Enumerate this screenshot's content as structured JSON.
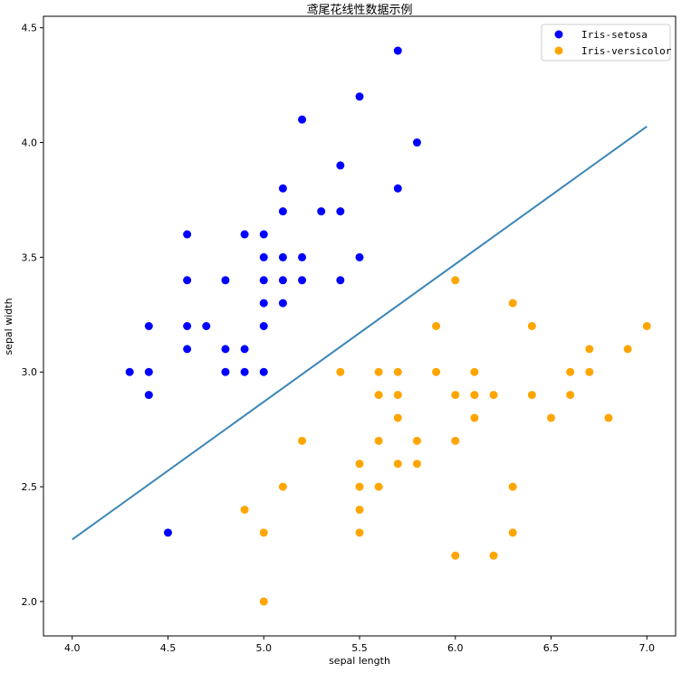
{
  "chart_data": {
    "type": "scatter",
    "title": "鸢尾花线性数据示例",
    "xlabel": "sepal length",
    "ylabel": "sepal width",
    "xlim": [
      3.85,
      7.15
    ],
    "ylim": [
      1.85,
      4.55
    ],
    "xticks": [
      "4.0",
      "4.5",
      "5.0",
      "5.5",
      "6.0",
      "6.5",
      "7.0"
    ],
    "yticks": [
      "2.0",
      "2.5",
      "3.0",
      "3.5",
      "4.0",
      "4.5"
    ],
    "legend_position": "top-right",
    "series": [
      {
        "name": "Iris-setosa",
        "color": "#0000ff",
        "points": [
          [
            5.7,
            4.4
          ],
          [
            5.5,
            4.2
          ],
          [
            5.2,
            4.1
          ],
          [
            5.8,
            4.0
          ],
          [
            5.4,
            3.9
          ],
          [
            5.1,
            3.8
          ],
          [
            5.7,
            3.8
          ],
          [
            5.1,
            3.7
          ],
          [
            5.3,
            3.7
          ],
          [
            5.4,
            3.7
          ],
          [
            4.6,
            3.6
          ],
          [
            4.9,
            3.6
          ],
          [
            5.0,
            3.6
          ],
          [
            5.0,
            3.5
          ],
          [
            5.1,
            3.5
          ],
          [
            5.2,
            3.5
          ],
          [
            5.5,
            3.5
          ],
          [
            4.6,
            3.4
          ],
          [
            4.8,
            3.4
          ],
          [
            5.0,
            3.4
          ],
          [
            5.1,
            3.4
          ],
          [
            5.2,
            3.4
          ],
          [
            5.4,
            3.4
          ],
          [
            5.0,
            3.3
          ],
          [
            5.1,
            3.3
          ],
          [
            4.4,
            3.2
          ],
          [
            4.6,
            3.2
          ],
          [
            4.7,
            3.2
          ],
          [
            5.0,
            3.2
          ],
          [
            4.6,
            3.1
          ],
          [
            4.8,
            3.1
          ],
          [
            4.9,
            3.1
          ],
          [
            4.3,
            3.0
          ],
          [
            4.4,
            3.0
          ],
          [
            4.8,
            3.0
          ],
          [
            4.9,
            3.0
          ],
          [
            5.0,
            3.0
          ],
          [
            4.4,
            2.9
          ],
          [
            4.5,
            2.3
          ]
        ]
      },
      {
        "name": "Iris-versicolor",
        "color": "#ffa500",
        "points": [
          [
            6.0,
            3.4
          ],
          [
            6.3,
            3.3
          ],
          [
            5.9,
            3.2
          ],
          [
            6.4,
            3.2
          ],
          [
            7.0,
            3.2
          ],
          [
            6.7,
            3.1
          ],
          [
            6.9,
            3.1
          ],
          [
            5.4,
            3.0
          ],
          [
            5.6,
            3.0
          ],
          [
            5.7,
            3.0
          ],
          [
            5.9,
            3.0
          ],
          [
            6.1,
            3.0
          ],
          [
            6.6,
            3.0
          ],
          [
            6.7,
            3.0
          ],
          [
            5.6,
            2.9
          ],
          [
            5.7,
            2.9
          ],
          [
            6.0,
            2.9
          ],
          [
            6.1,
            2.9
          ],
          [
            6.2,
            2.9
          ],
          [
            6.4,
            2.9
          ],
          [
            6.6,
            2.9
          ],
          [
            5.7,
            2.8
          ],
          [
            6.1,
            2.8
          ],
          [
            6.5,
            2.8
          ],
          [
            6.8,
            2.8
          ],
          [
            5.2,
            2.7
          ],
          [
            5.6,
            2.7
          ],
          [
            5.8,
            2.7
          ],
          [
            6.0,
            2.7
          ],
          [
            5.5,
            2.6
          ],
          [
            5.7,
            2.6
          ],
          [
            5.8,
            2.6
          ],
          [
            5.1,
            2.5
          ],
          [
            5.5,
            2.5
          ],
          [
            5.6,
            2.5
          ],
          [
            6.3,
            2.5
          ],
          [
            4.9,
            2.4
          ],
          [
            5.5,
            2.4
          ],
          [
            5.0,
            2.3
          ],
          [
            5.5,
            2.3
          ],
          [
            6.3,
            2.3
          ],
          [
            6.0,
            2.2
          ],
          [
            6.2,
            2.2
          ],
          [
            5.0,
            2.0
          ]
        ]
      }
    ],
    "line": {
      "color": "#3a86b7",
      "points": [
        [
          4.0,
          2.27
        ],
        [
          7.0,
          4.07
        ]
      ]
    }
  }
}
